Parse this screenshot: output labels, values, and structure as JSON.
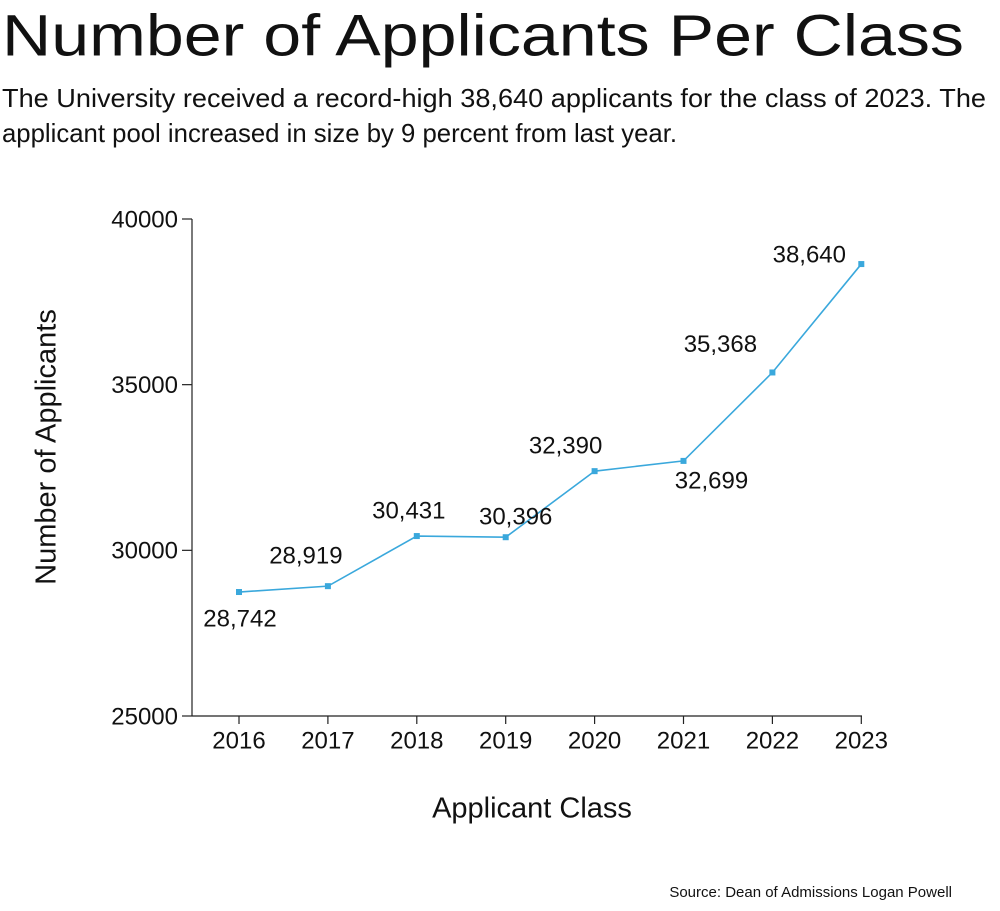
{
  "chart_data": {
    "type": "line",
    "title": "Number of Applicants Per Class",
    "subtitle": [
      "The University received a record-high 38,640 applicants for the class of 2023. The",
      "applicant pool increased in size by 9 percent from last year."
    ],
    "x_label": "Applicant Class",
    "y_label": "Number of Applicants",
    "source": "Source: Dean of Admissions Logan Powell",
    "categories": [
      "2016",
      "2017",
      "2018",
      "2019",
      "2020",
      "2021",
      "2022",
      "2023"
    ],
    "series": [
      {
        "name": "Applicants",
        "color": "#3aa8dc",
        "values": [
          28742,
          28919,
          30431,
          30396,
          32390,
          32699,
          35368,
          38640
        ],
        "value_labels": [
          "28,742",
          "28,919",
          "30,431",
          "30,396",
          "32,390",
          "32,699",
          "35,368",
          "38,640"
        ]
      }
    ],
    "ylim": [
      25000,
      40000
    ],
    "yticks": [
      25000,
      30000,
      35000,
      40000
    ]
  }
}
